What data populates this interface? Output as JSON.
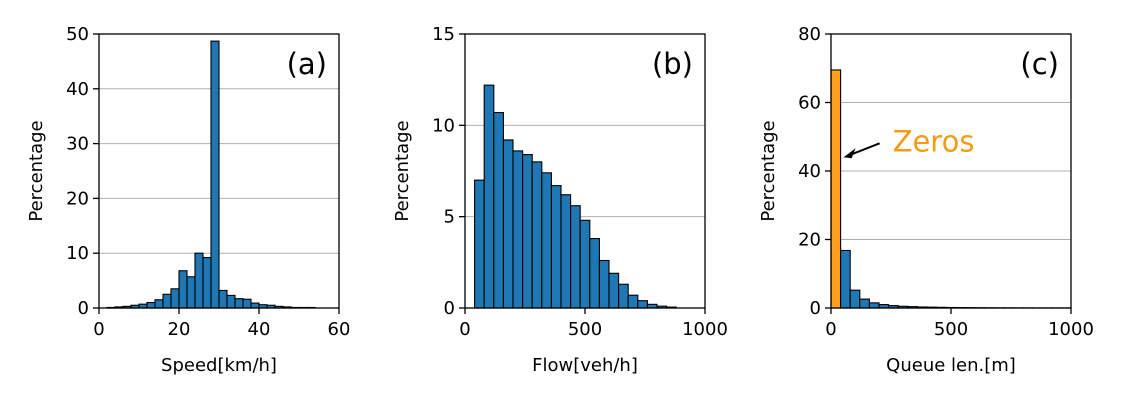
{
  "colors": {
    "bar": "#1f77b4",
    "highlight": "#ff9f1c",
    "annotation": "#f39c12",
    "grid": "#b0b0b0"
  },
  "chart_data": [
    {
      "type": "bar",
      "panel_label": "(a)",
      "xlabel": "Speed[km/h]",
      "ylabel": "Percentage",
      "xlim": [
        0,
        60
      ],
      "ylim": [
        0,
        50
      ],
      "xticks": [
        0,
        20,
        40,
        60
      ],
      "yticks": [
        0,
        10,
        20,
        30,
        40,
        50
      ],
      "grid": "y",
      "bin_width": 2,
      "bins": [
        {
          "x0": 2,
          "x1": 4,
          "value": 0.1
        },
        {
          "x0": 4,
          "x1": 6,
          "value": 0.2
        },
        {
          "x0": 6,
          "x1": 8,
          "value": 0.3
        },
        {
          "x0": 8,
          "x1": 10,
          "value": 0.5
        },
        {
          "x0": 10,
          "x1": 12,
          "value": 0.7
        },
        {
          "x0": 12,
          "x1": 14,
          "value": 1.0
        },
        {
          "x0": 14,
          "x1": 16,
          "value": 1.5
        },
        {
          "x0": 16,
          "x1": 18,
          "value": 2.5
        },
        {
          "x0": 18,
          "x1": 20,
          "value": 3.5
        },
        {
          "x0": 20,
          "x1": 22,
          "value": 6.8
        },
        {
          "x0": 22,
          "x1": 24,
          "value": 5.7
        },
        {
          "x0": 24,
          "x1": 26,
          "value": 10.0
        },
        {
          "x0": 26,
          "x1": 28,
          "value": 9.2
        },
        {
          "x0": 28,
          "x1": 30,
          "value": 48.7
        },
        {
          "x0": 30,
          "x1": 32,
          "value": 3.2
        },
        {
          "x0": 32,
          "x1": 34,
          "value": 2.3
        },
        {
          "x0": 34,
          "x1": 36,
          "value": 1.7
        },
        {
          "x0": 36,
          "x1": 38,
          "value": 1.6
        },
        {
          "x0": 38,
          "x1": 40,
          "value": 0.9
        },
        {
          "x0": 40,
          "x1": 42,
          "value": 0.6
        },
        {
          "x0": 42,
          "x1": 44,
          "value": 0.5
        },
        {
          "x0": 44,
          "x1": 46,
          "value": 0.3
        },
        {
          "x0": 46,
          "x1": 48,
          "value": 0.2
        },
        {
          "x0": 48,
          "x1": 50,
          "value": 0.1
        },
        {
          "x0": 50,
          "x1": 52,
          "value": 0.1
        },
        {
          "x0": 52,
          "x1": 54,
          "value": 0.1
        }
      ]
    },
    {
      "type": "bar",
      "panel_label": "(b)",
      "xlabel": "Flow[veh/h]",
      "ylabel": "Percentage",
      "xlim": [
        0,
        1000
      ],
      "ylim": [
        0,
        15
      ],
      "xticks": [
        0,
        500,
        1000
      ],
      "yticks": [
        0,
        5,
        10,
        15
      ],
      "grid": "y",
      "bin_width": 40,
      "bins": [
        {
          "x0": 40,
          "x1": 80,
          "value": 7.0
        },
        {
          "x0": 80,
          "x1": 120,
          "value": 12.2
        },
        {
          "x0": 120,
          "x1": 160,
          "value": 10.7
        },
        {
          "x0": 160,
          "x1": 200,
          "value": 9.2
        },
        {
          "x0": 200,
          "x1": 240,
          "value": 8.6
        },
        {
          "x0": 240,
          "x1": 280,
          "value": 8.4
        },
        {
          "x0": 280,
          "x1": 320,
          "value": 8.0
        },
        {
          "x0": 320,
          "x1": 360,
          "value": 7.4
        },
        {
          "x0": 360,
          "x1": 400,
          "value": 6.7
        },
        {
          "x0": 400,
          "x1": 440,
          "value": 6.2
        },
        {
          "x0": 440,
          "x1": 480,
          "value": 5.6
        },
        {
          "x0": 480,
          "x1": 520,
          "value": 4.8
        },
        {
          "x0": 520,
          "x1": 560,
          "value": 3.8
        },
        {
          "x0": 560,
          "x1": 600,
          "value": 2.6
        },
        {
          "x0": 600,
          "x1": 640,
          "value": 1.9
        },
        {
          "x0": 640,
          "x1": 680,
          "value": 1.3
        },
        {
          "x0": 680,
          "x1": 720,
          "value": 0.7
        },
        {
          "x0": 720,
          "x1": 760,
          "value": 0.4
        },
        {
          "x0": 760,
          "x1": 800,
          "value": 0.2
        },
        {
          "x0": 800,
          "x1": 840,
          "value": 0.1
        },
        {
          "x0": 840,
          "x1": 880,
          "value": 0.05
        }
      ]
    },
    {
      "type": "bar",
      "panel_label": "(c)",
      "xlabel": "Queue len.[m]",
      "ylabel": "Percentage",
      "xlim": [
        0,
        1000
      ],
      "ylim": [
        0,
        80
      ],
      "xticks": [
        0,
        500,
        1000
      ],
      "yticks": [
        0,
        20,
        40,
        60,
        80
      ],
      "grid": "y",
      "bin_width": 40,
      "bins": [
        {
          "x0": 0,
          "x1": 40,
          "value": 69.5,
          "highlight": true
        },
        {
          "x0": 40,
          "x1": 80,
          "value": 16.8
        },
        {
          "x0": 80,
          "x1": 120,
          "value": 5.2
        },
        {
          "x0": 120,
          "x1": 160,
          "value": 2.6
        },
        {
          "x0": 160,
          "x1": 200,
          "value": 1.5
        },
        {
          "x0": 200,
          "x1": 240,
          "value": 1.0
        },
        {
          "x0": 240,
          "x1": 280,
          "value": 0.7
        },
        {
          "x0": 280,
          "x1": 320,
          "value": 0.5
        },
        {
          "x0": 320,
          "x1": 360,
          "value": 0.4
        },
        {
          "x0": 360,
          "x1": 400,
          "value": 0.3
        },
        {
          "x0": 400,
          "x1": 440,
          "value": 0.25
        },
        {
          "x0": 440,
          "x1": 480,
          "value": 0.2
        },
        {
          "x0": 480,
          "x1": 520,
          "value": 0.15
        },
        {
          "x0": 520,
          "x1": 560,
          "value": 0.12
        },
        {
          "x0": 560,
          "x1": 600,
          "value": 0.1
        },
        {
          "x0": 600,
          "x1": 640,
          "value": 0.08
        },
        {
          "x0": 640,
          "x1": 680,
          "value": 0.06
        },
        {
          "x0": 680,
          "x1": 720,
          "value": 0.05
        },
        {
          "x0": 720,
          "x1": 760,
          "value": 0.04
        },
        {
          "x0": 760,
          "x1": 800,
          "value": 0.03
        },
        {
          "x0": 800,
          "x1": 840,
          "value": 0.03
        },
        {
          "x0": 840,
          "x1": 880,
          "value": 0.02
        },
        {
          "x0": 880,
          "x1": 920,
          "value": 0.02
        },
        {
          "x0": 920,
          "x1": 960,
          "value": 0.02
        },
        {
          "x0": 960,
          "x1": 1000,
          "value": 0.02
        }
      ],
      "annotation": {
        "text": "Zeros",
        "points_to_bin": 0,
        "arrow": true
      }
    }
  ]
}
